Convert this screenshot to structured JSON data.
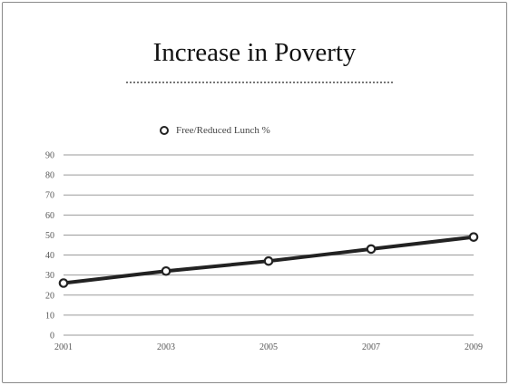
{
  "chart_data": {
    "type": "line",
    "title": "Increase in Poverty",
    "x": [
      "2001",
      "2003",
      "2005",
      "2007",
      "2009"
    ],
    "series": [
      {
        "name": "Free/Reduced Lunch %",
        "values": [
          26,
          32,
          37,
          43,
          49
        ]
      }
    ],
    "yticks": [
      0,
      10,
      20,
      30,
      40,
      50,
      60,
      70,
      80,
      90
    ],
    "ylim": [
      0,
      90
    ],
    "grid": true,
    "legend_position": "top-center",
    "line_color": "#222222",
    "marker": "open-circle"
  }
}
